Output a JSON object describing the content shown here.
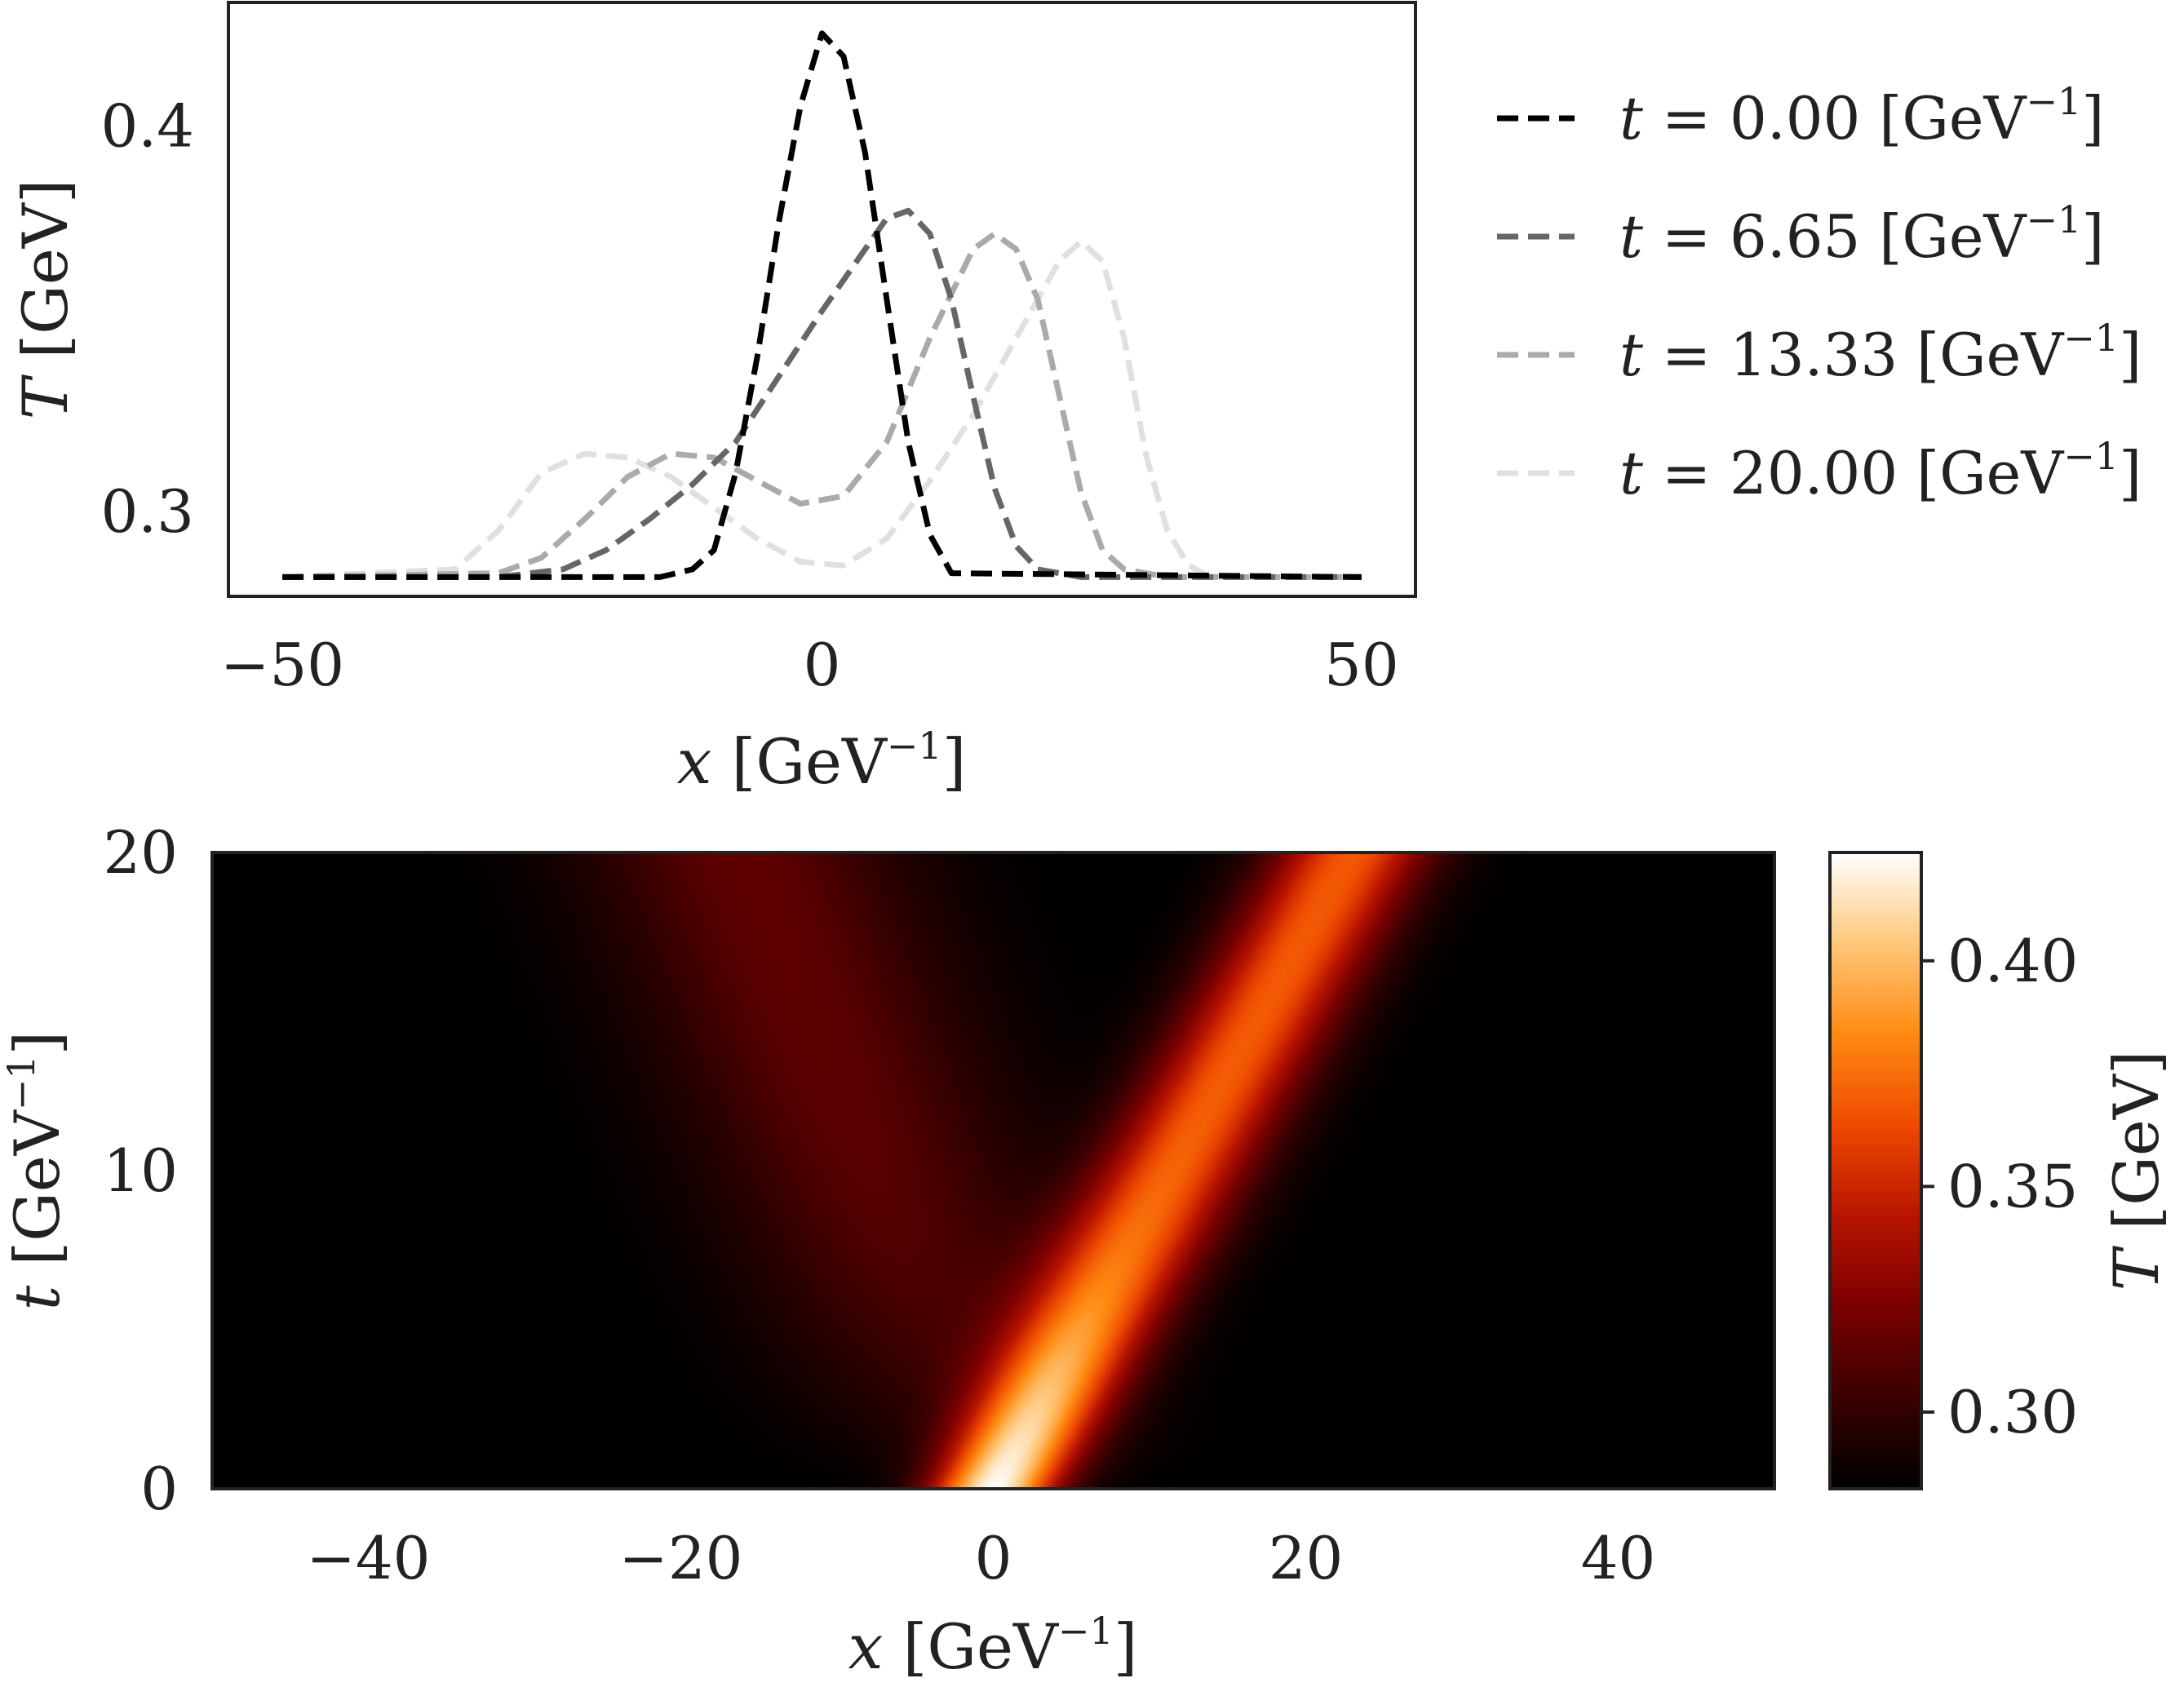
{
  "chart_data": [
    {
      "type": "line",
      "xlabel": {
        "var": "x",
        "unit": "GeV",
        "exp": "−1"
      },
      "ylabel": {
        "var": "T",
        "unit": "GeV"
      },
      "xlim": [
        -55,
        55
      ],
      "ylim": [
        0.278,
        0.432
      ],
      "x_ticks": [
        {
          "v": -50,
          "label": "−50"
        },
        {
          "v": 0,
          "label": "0"
        },
        {
          "v": 50,
          "label": "50"
        }
      ],
      "y_ticks": [
        {
          "v": 0.3,
          "label": "0.3"
        },
        {
          "v": 0.4,
          "label": "0.4"
        }
      ],
      "legend_position": "right",
      "line_style": "dashed",
      "series": [
        {
          "name": "t = 0.00 [GeV−1]",
          "prefix": "t = 0.00",
          "color": "#000000",
          "x": [
            -50,
            -15,
            -12,
            -10,
            -8,
            -6,
            -4,
            -2,
            0,
            2,
            4,
            6,
            8,
            10,
            12,
            50
          ],
          "y": [
            0.283,
            0.283,
            0.285,
            0.29,
            0.31,
            0.34,
            0.375,
            0.405,
            0.424,
            0.418,
            0.393,
            0.355,
            0.318,
            0.294,
            0.284,
            0.283
          ]
        },
        {
          "name": "t = 6.65 [GeV−1]",
          "prefix": "t = 6.65",
          "color": "#666666",
          "x": [
            -50,
            -30,
            -24,
            -20,
            -16,
            -12,
            -8,
            -4,
            0,
            4,
            6,
            8,
            10,
            12,
            14,
            16,
            18,
            20,
            24,
            50
          ],
          "y": [
            0.283,
            0.283,
            0.285,
            0.29,
            0.298,
            0.307,
            0.318,
            0.335,
            0.352,
            0.368,
            0.376,
            0.378,
            0.372,
            0.355,
            0.33,
            0.306,
            0.291,
            0.285,
            0.283,
            0.283
          ]
        },
        {
          "name": "t = 13.33 [GeV−1]",
          "prefix": "t = 13.33",
          "color": "#aaaaaa",
          "x": [
            -50,
            -30,
            -26,
            -22,
            -18,
            -14,
            -10,
            -6,
            -2,
            2,
            6,
            10,
            14,
            16,
            18,
            20,
            22,
            24,
            26,
            28,
            32,
            50
          ],
          "y": [
            0.283,
            0.284,
            0.288,
            0.298,
            0.309,
            0.315,
            0.314,
            0.308,
            0.302,
            0.304,
            0.318,
            0.345,
            0.368,
            0.372,
            0.368,
            0.355,
            0.33,
            0.305,
            0.29,
            0.285,
            0.283,
            0.283
          ]
        },
        {
          "name": "t = 20.00 [GeV−1]",
          "prefix": "t = 20.00",
          "color": "#e0e0e0",
          "x": [
            -50,
            -34,
            -30,
            -26,
            -22,
            -18,
            -14,
            -10,
            -6,
            -2,
            2,
            6,
            10,
            14,
            18,
            22,
            24,
            26,
            28,
            30,
            32,
            34,
            36,
            50
          ],
          "y": [
            0.283,
            0.285,
            0.295,
            0.31,
            0.315,
            0.314,
            0.309,
            0.301,
            0.293,
            0.287,
            0.286,
            0.293,
            0.308,
            0.325,
            0.345,
            0.365,
            0.37,
            0.365,
            0.345,
            0.315,
            0.295,
            0.286,
            0.283,
            0.283
          ]
        }
      ]
    },
    {
      "type": "heatmap",
      "xlabel": {
        "var": "x",
        "unit": "GeV",
        "exp": "−1"
      },
      "ylabel": {
        "var": "t",
        "unit": "GeV",
        "exp": "−1"
      },
      "xlim": [
        -50,
        50
      ],
      "ylim": [
        0,
        20
      ],
      "x_ticks": [
        {
          "v": -40,
          "label": "−40"
        },
        {
          "v": -20,
          "label": "−20"
        },
        {
          "v": 0,
          "label": "0"
        },
        {
          "v": 20,
          "label": "20"
        },
        {
          "v": 40,
          "label": "40"
        }
      ],
      "y_ticks": [
        {
          "v": 0,
          "label": "0"
        },
        {
          "v": 10,
          "label": "10"
        },
        {
          "v": 20,
          "label": "20"
        }
      ],
      "colormap": "gist_heat",
      "colorbar": {
        "label": {
          "var": "T",
          "unit": "GeV"
        },
        "range": [
          0.283,
          0.424
        ],
        "ticks": [
          {
            "v": 0.3,
            "label": "0.30"
          },
          {
            "v": 0.35,
            "label": "0.35"
          },
          {
            "v": 0.4,
            "label": "0.40"
          }
        ],
        "stops": [
          "#000000",
          "#3a0000",
          "#7a0000",
          "#b81400",
          "#ee4a00",
          "#ff8a12",
          "#ffc77a",
          "#ffffff"
        ]
      },
      "field_model": {
        "background": 0.283,
        "right_peak": {
          "center_x_at_t0": 0,
          "speed": 1.15,
          "amplitude_t0": 0.141,
          "amplitude_late": 0.085,
          "width_t0": 4.0,
          "width_late": 5.0
        },
        "left_peak": {
          "center_x_at_t0": 0,
          "speed": -0.8,
          "amplitude_late": 0.032,
          "width": 10.0
        }
      }
    }
  ]
}
